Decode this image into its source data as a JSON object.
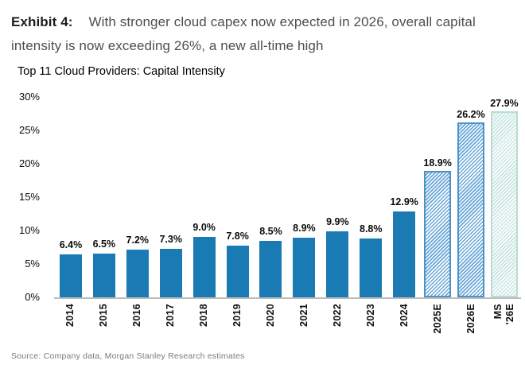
{
  "header": {
    "exhibit_label": "Exhibit 4:",
    "caption": "With stronger cloud capex now expected in 2026, overall capital intensity is now exceeding 26%, a new all-time high"
  },
  "chart_data": {
    "type": "bar",
    "title": "Top 11 Cloud Providers: Capital Intensity",
    "categories": [
      "2014",
      "2015",
      "2016",
      "2017",
      "2018",
      "2019",
      "2020",
      "2021",
      "2022",
      "2023",
      "2024",
      "2025E",
      "2026E",
      "MS\n'26E"
    ],
    "values": [
      6.4,
      6.5,
      7.2,
      7.3,
      9.0,
      7.8,
      8.5,
      8.9,
      9.9,
      8.8,
      12.9,
      18.9,
      26.2,
      27.9
    ],
    "labels": [
      "6.4%",
      "6.5%",
      "7.2%",
      "7.3%",
      "9.0%",
      "7.8%",
      "8.5%",
      "8.9%",
      "9.9%",
      "8.8%",
      "12.9%",
      "18.9%",
      "26.2%",
      "27.9%"
    ],
    "bar_styles": [
      "solid",
      "solid",
      "solid",
      "solid",
      "solid",
      "solid",
      "solid",
      "solid",
      "solid",
      "solid",
      "solid",
      "hatch-blue",
      "hatch-blue",
      "hatch-teal"
    ],
    "ylim": [
      0,
      30
    ],
    "yticks": [
      "30%",
      "25%",
      "20%",
      "15%",
      "10%",
      "5%",
      "0%"
    ],
    "grid": false,
    "legend": "none",
    "colors": {
      "solid_bar": "#1a7ab3",
      "hatch_blue_line": "#6aa6d7",
      "hatch_blue_border": "#4d92c6",
      "hatch_teal_line": "#c7e5e0",
      "hatch_teal_border": "#b9dcd6"
    }
  },
  "footer": {
    "source": "Source: Company data, Morgan Stanley Research estimates"
  }
}
